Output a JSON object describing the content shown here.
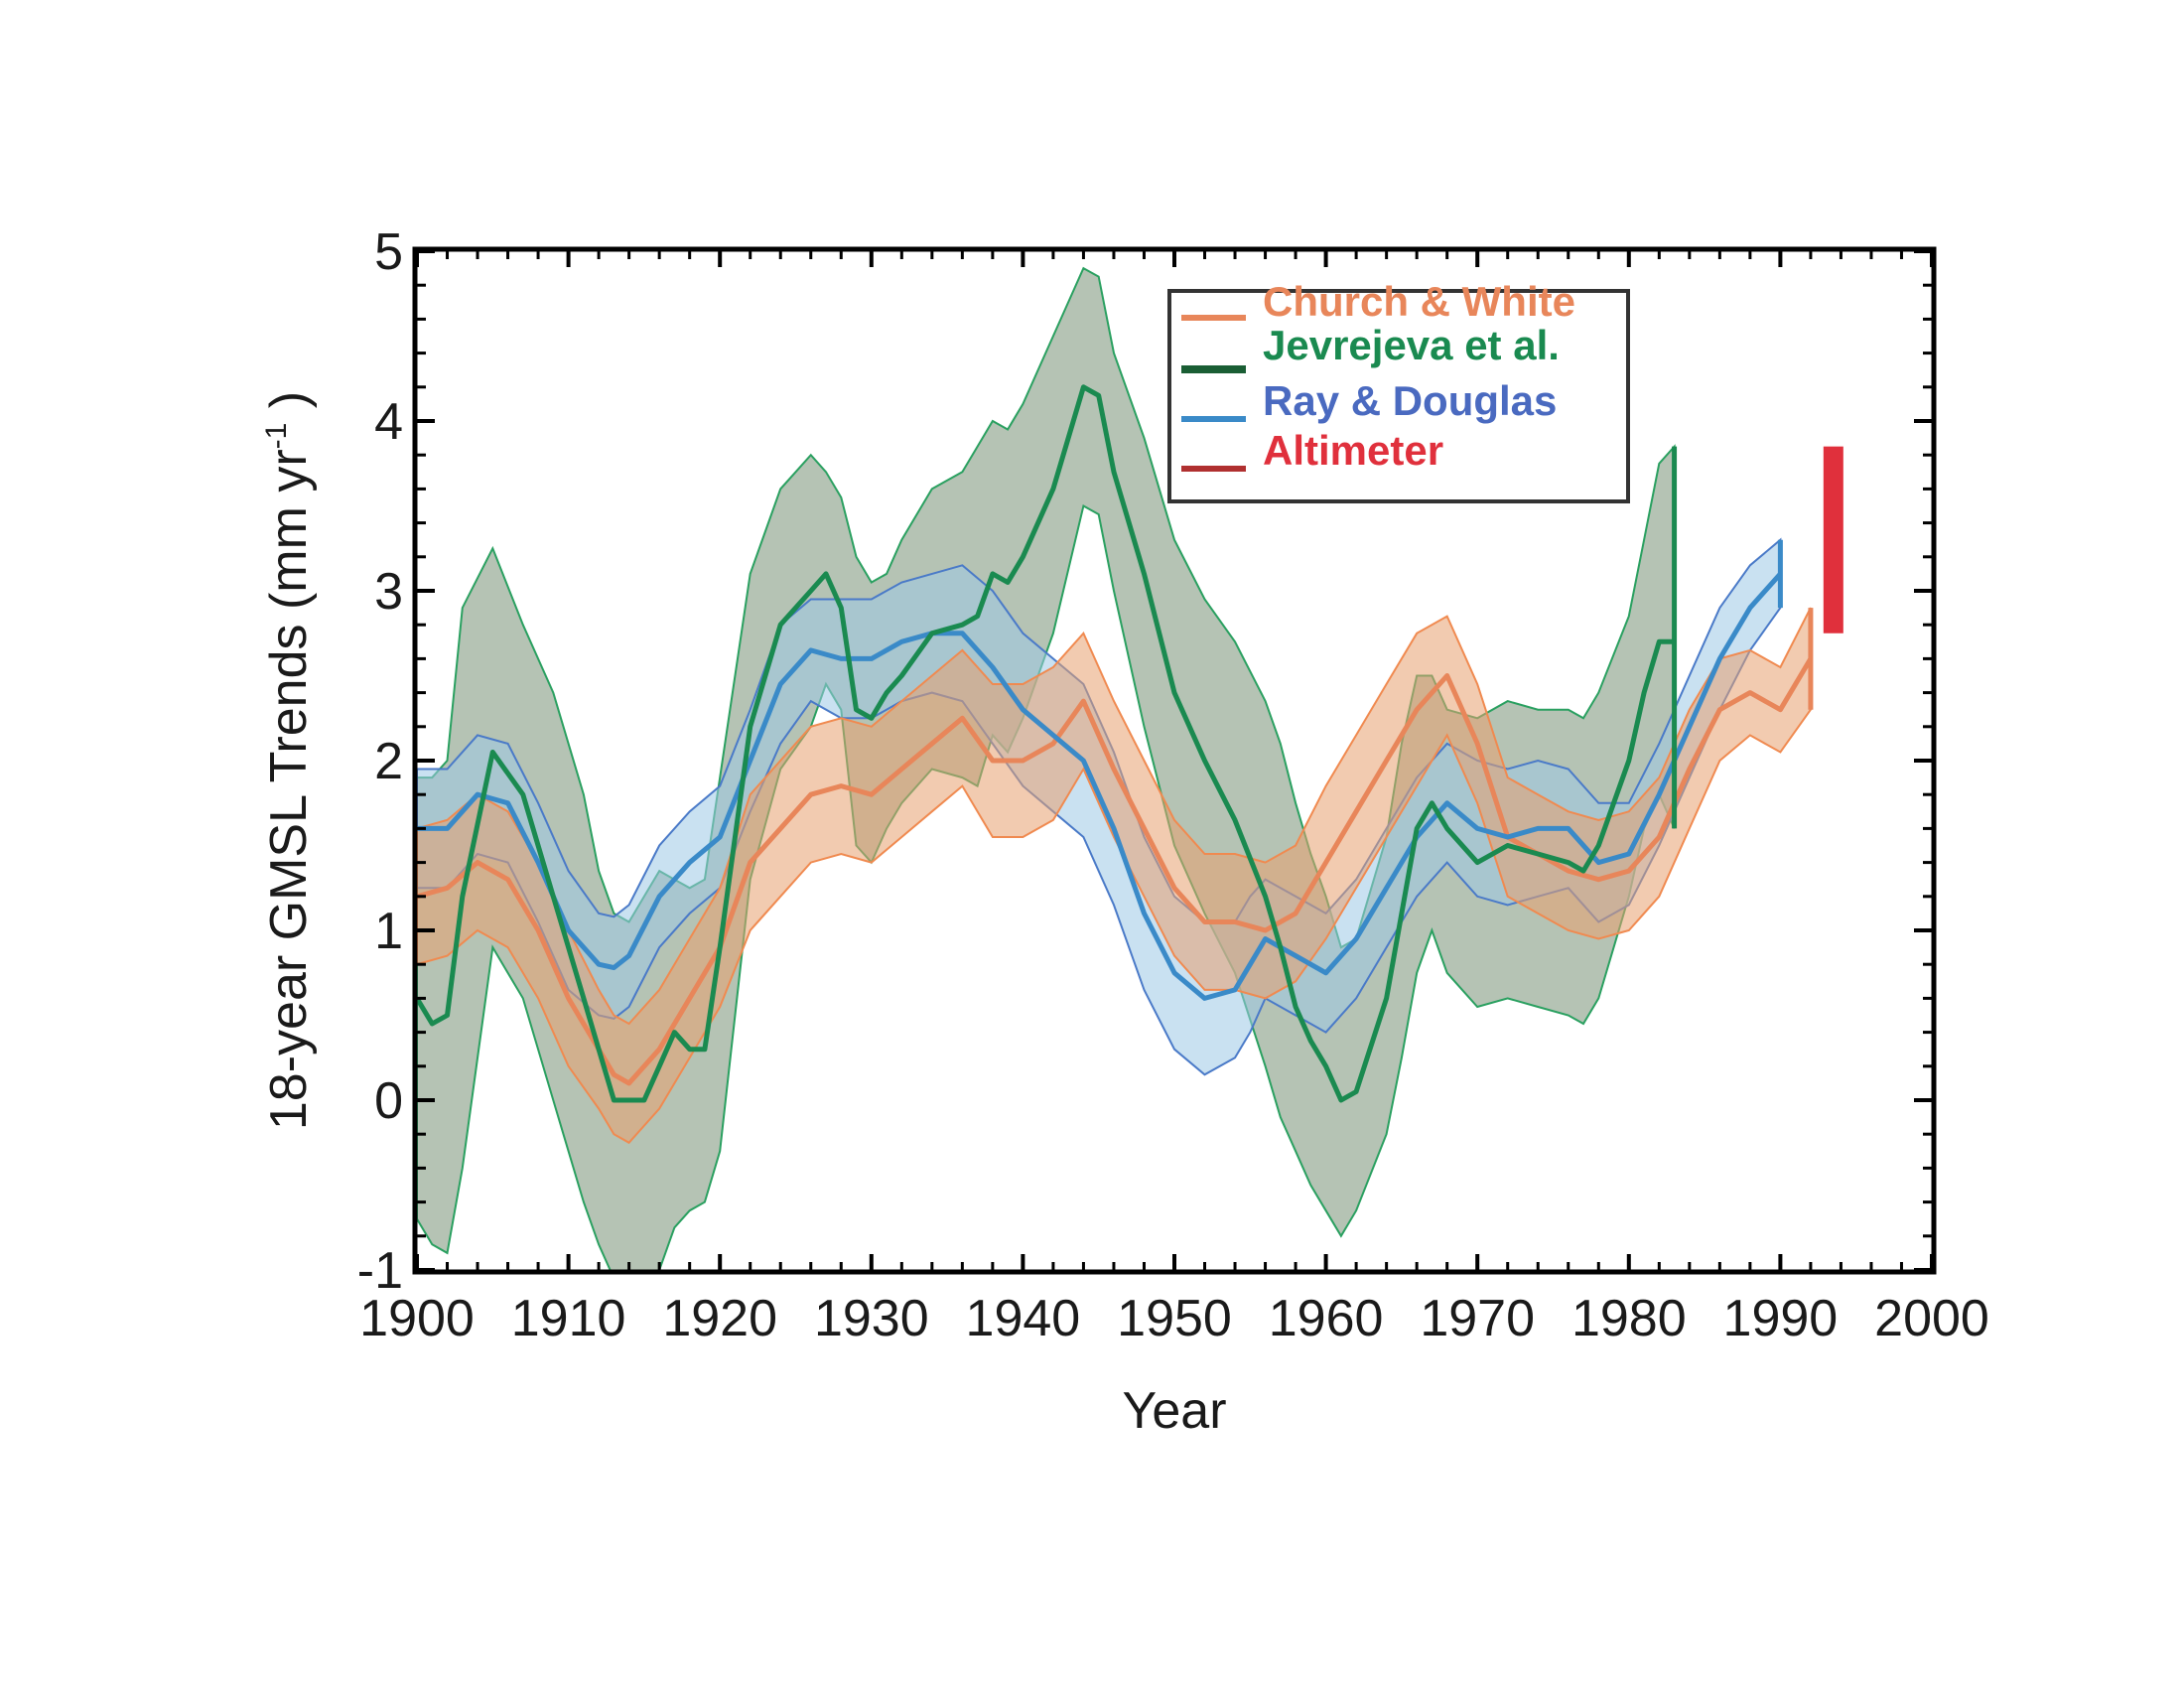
{
  "chart_data": {
    "type": "line",
    "title": "",
    "xlabel": "Year",
    "ylabel": "18-year GMSL Trends (mm yr",
    "ylabel_sup": "-1",
    "ylabel_end": " )",
    "xlim": [
      1900,
      2000
    ],
    "ylim": [
      -1,
      5
    ],
    "xticks": [
      1900,
      1910,
      1920,
      1930,
      1940,
      1950,
      1960,
      1970,
      1980,
      1990,
      2000
    ],
    "yticks": [
      -1,
      0,
      1,
      2,
      3,
      4,
      5
    ],
    "legend_position": "top-center",
    "colors": {
      "church": "#e8865a",
      "jevrejeva": "#1a8a50",
      "ray": "#3a8ac8",
      "altimeter": "#e0303c"
    },
    "series": [
      {
        "name": "Church & White",
        "key": "church",
        "x": [
          1900,
          1902,
          1904,
          1906,
          1908,
          1910,
          1912,
          1913,
          1914,
          1916,
          1918,
          1920,
          1922,
          1924,
          1926,
          1928,
          1930,
          1932,
          1934,
          1936,
          1938,
          1940,
          1942,
          1944,
          1946,
          1948,
          1950,
          1952,
          1954,
          1956,
          1958,
          1960,
          1962,
          1964,
          1966,
          1968,
          1970,
          1972,
          1974,
          1976,
          1978,
          1980,
          1982,
          1984,
          1986,
          1988,
          1990,
          1992
        ],
        "mid": [
          1.2,
          1.25,
          1.4,
          1.3,
          1.0,
          0.6,
          0.3,
          0.15,
          0.1,
          0.3,
          0.6,
          0.9,
          1.4,
          1.6,
          1.8,
          1.85,
          1.8,
          1.95,
          2.1,
          2.25,
          2.0,
          2.0,
          2.1,
          2.35,
          1.95,
          1.6,
          1.25,
          1.05,
          1.05,
          1.0,
          1.1,
          1.4,
          1.7,
          2.0,
          2.3,
          2.5,
          2.1,
          1.55,
          1.45,
          1.35,
          1.3,
          1.35,
          1.55,
          1.95,
          2.3,
          2.4,
          2.3,
          2.6
        ],
        "upper": [
          1.6,
          1.65,
          1.8,
          1.7,
          1.4,
          1.0,
          0.65,
          0.5,
          0.45,
          0.65,
          0.95,
          1.25,
          1.8,
          2.0,
          2.2,
          2.25,
          2.2,
          2.35,
          2.5,
          2.65,
          2.45,
          2.45,
          2.55,
          2.75,
          2.35,
          2.0,
          1.65,
          1.45,
          1.45,
          1.4,
          1.5,
          1.85,
          2.15,
          2.45,
          2.75,
          2.85,
          2.45,
          1.9,
          1.8,
          1.7,
          1.65,
          1.7,
          1.9,
          2.3,
          2.6,
          2.65,
          2.55,
          2.9
        ],
        "lower": [
          0.8,
          0.85,
          1.0,
          0.9,
          0.6,
          0.2,
          -0.05,
          -0.2,
          -0.25,
          -0.05,
          0.25,
          0.55,
          1.0,
          1.2,
          1.4,
          1.45,
          1.4,
          1.55,
          1.7,
          1.85,
          1.55,
          1.55,
          1.65,
          1.95,
          1.55,
          1.2,
          0.85,
          0.65,
          0.65,
          0.6,
          0.7,
          0.95,
          1.25,
          1.55,
          1.85,
          2.15,
          1.75,
          1.2,
          1.1,
          1.0,
          0.95,
          1.0,
          1.2,
          1.6,
          2.0,
          2.15,
          2.05,
          2.3
        ]
      },
      {
        "name": "Jevrejeva et al.",
        "key": "jevrejeva",
        "x": [
          1900,
          1901,
          1902,
          1903,
          1905,
          1907,
          1909,
          1911,
          1912,
          1913,
          1914,
          1915,
          1916,
          1917,
          1918,
          1919,
          1920,
          1922,
          1924,
          1926,
          1927,
          1928,
          1929,
          1930,
          1931,
          1932,
          1934,
          1936,
          1937,
          1938,
          1939,
          1940,
          1942,
          1944,
          1945,
          1946,
          1948,
          1950,
          1952,
          1954,
          1956,
          1957,
          1958,
          1959,
          1960,
          1961,
          1962,
          1964,
          1965,
          1966,
          1967,
          1968,
          1970,
          1972,
          1974,
          1976,
          1977,
          1978,
          1980,
          1981,
          1982,
          1983
        ],
        "mid": [
          0.6,
          0.45,
          0.5,
          1.2,
          2.05,
          1.8,
          1.2,
          0.6,
          0.3,
          0.0,
          0.0,
          0.0,
          0.2,
          0.4,
          0.3,
          0.3,
          0.9,
          2.2,
          2.8,
          3.0,
          3.1,
          2.9,
          2.3,
          2.25,
          2.4,
          2.5,
          2.75,
          2.8,
          2.85,
          3.1,
          3.05,
          3.2,
          3.6,
          4.2,
          4.15,
          3.7,
          3.1,
          2.4,
          2.0,
          1.65,
          1.2,
          0.9,
          0.55,
          0.35,
          0.2,
          0.0,
          0.05,
          0.6,
          1.1,
          1.6,
          1.75,
          1.6,
          1.4,
          1.5,
          1.45,
          1.4,
          1.35,
          1.5,
          2.0,
          2.4,
          2.7,
          2.7
        ],
        "upper": [
          1.9,
          1.9,
          2.0,
          2.9,
          3.25,
          2.8,
          2.4,
          1.8,
          1.35,
          1.1,
          1.05,
          1.2,
          1.35,
          1.3,
          1.25,
          1.3,
          1.9,
          3.1,
          3.6,
          3.8,
          3.7,
          3.55,
          3.2,
          3.05,
          3.1,
          3.3,
          3.6,
          3.7,
          3.85,
          4.0,
          3.95,
          4.1,
          4.5,
          4.9,
          4.85,
          4.4,
          3.9,
          3.3,
          2.95,
          2.7,
          2.35,
          2.1,
          1.75,
          1.45,
          1.2,
          0.9,
          0.95,
          1.55,
          2.1,
          2.5,
          2.5,
          2.3,
          2.25,
          2.35,
          2.3,
          2.3,
          2.25,
          2.4,
          2.85,
          3.3,
          3.75,
          3.85
        ],
        "lower": [
          -0.7,
          -0.85,
          -0.9,
          -0.4,
          0.9,
          0.6,
          0.0,
          -0.6,
          -0.85,
          -1.05,
          -1.1,
          -1.15,
          -1.0,
          -0.75,
          -0.65,
          -0.6,
          -0.3,
          1.3,
          1.95,
          2.2,
          2.45,
          2.3,
          1.5,
          1.4,
          1.6,
          1.75,
          1.95,
          1.9,
          1.85,
          2.15,
          2.05,
          2.25,
          2.75,
          3.5,
          3.45,
          3.0,
          2.2,
          1.5,
          1.1,
          0.75,
          0.2,
          -0.1,
          -0.3,
          -0.5,
          -0.65,
          -0.8,
          -0.65,
          -0.2,
          0.25,
          0.75,
          1.0,
          0.75,
          0.55,
          0.6,
          0.55,
          0.5,
          0.45,
          0.6,
          1.2,
          1.6,
          1.8,
          1.6
        ]
      },
      {
        "name": "Ray & Douglas",
        "key": "ray",
        "x": [
          1900,
          1902,
          1904,
          1906,
          1908,
          1910,
          1912,
          1913,
          1914,
          1916,
          1918,
          1920,
          1922,
          1924,
          1926,
          1928,
          1930,
          1932,
          1934,
          1936,
          1938,
          1940,
          1942,
          1944,
          1946,
          1948,
          1950,
          1952,
          1954,
          1955,
          1956,
          1958,
          1960,
          1962,
          1964,
          1966,
          1968,
          1970,
          1972,
          1974,
          1976,
          1978,
          1980,
          1982,
          1984,
          1986,
          1988,
          1990
        ],
        "mid": [
          1.6,
          1.6,
          1.8,
          1.75,
          1.4,
          1.0,
          0.8,
          0.78,
          0.85,
          1.2,
          1.4,
          1.55,
          2.0,
          2.45,
          2.65,
          2.6,
          2.6,
          2.7,
          2.75,
          2.75,
          2.55,
          2.3,
          2.15,
          2.0,
          1.6,
          1.1,
          0.75,
          0.6,
          0.65,
          0.8,
          0.95,
          0.85,
          0.75,
          0.95,
          1.25,
          1.55,
          1.75,
          1.6,
          1.55,
          1.6,
          1.6,
          1.4,
          1.45,
          1.8,
          2.2,
          2.6,
          2.9,
          3.1
        ],
        "upper": [
          1.95,
          1.95,
          2.15,
          2.1,
          1.75,
          1.35,
          1.1,
          1.08,
          1.15,
          1.5,
          1.7,
          1.85,
          2.3,
          2.8,
          2.95,
          2.95,
          2.95,
          3.05,
          3.1,
          3.15,
          3.0,
          2.75,
          2.6,
          2.45,
          2.05,
          1.55,
          1.2,
          1.05,
          1.05,
          1.2,
          1.3,
          1.2,
          1.1,
          1.3,
          1.6,
          1.9,
          2.1,
          2.0,
          1.95,
          2.0,
          1.95,
          1.75,
          1.75,
          2.1,
          2.5,
          2.9,
          3.15,
          3.3
        ],
        "lower": [
          1.25,
          1.25,
          1.45,
          1.4,
          1.05,
          0.65,
          0.5,
          0.48,
          0.55,
          0.9,
          1.1,
          1.25,
          1.7,
          2.1,
          2.35,
          2.25,
          2.25,
          2.35,
          2.4,
          2.35,
          2.1,
          1.85,
          1.7,
          1.55,
          1.15,
          0.65,
          0.3,
          0.15,
          0.25,
          0.4,
          0.6,
          0.5,
          0.4,
          0.6,
          0.9,
          1.2,
          1.4,
          1.2,
          1.15,
          1.2,
          1.25,
          1.05,
          1.15,
          1.5,
          1.9,
          2.3,
          2.65,
          2.9
        ]
      }
    ],
    "altimeter": {
      "name": "Altimeter",
      "year": 1993.5,
      "low": 2.75,
      "high": 3.85
    }
  }
}
